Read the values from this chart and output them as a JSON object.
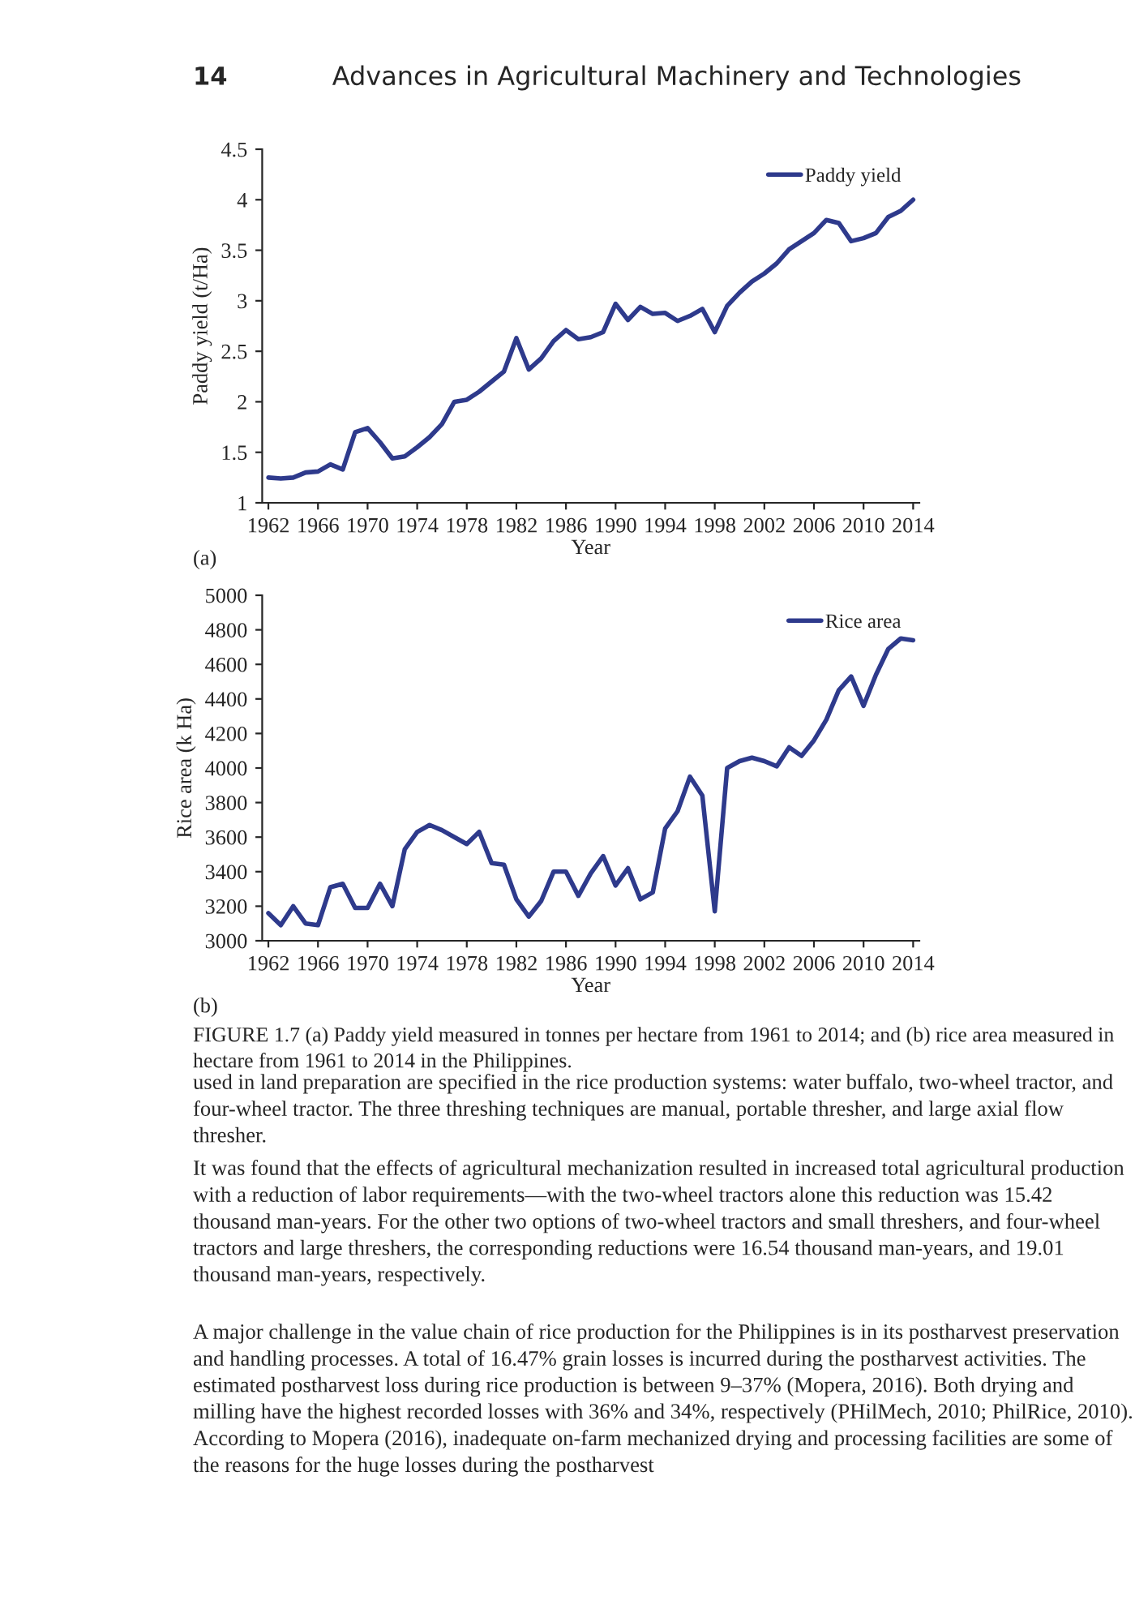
{
  "chart_data": [
    {
      "type": "line",
      "xlabel": "Year",
      "ylabel": "Paddy yield (t/Ha)",
      "x": [
        1962,
        1963,
        1964,
        1965,
        1966,
        1967,
        1968,
        1969,
        1970,
        1971,
        1972,
        1973,
        1974,
        1975,
        1976,
        1977,
        1978,
        1979,
        1980,
        1981,
        1982,
        1983,
        1984,
        1985,
        1986,
        1987,
        1988,
        1989,
        1990,
        1991,
        1992,
        1993,
        1994,
        1995,
        1996,
        1997,
        1998,
        1999,
        2000,
        2001,
        2002,
        2003,
        2004,
        2005,
        2006,
        2007,
        2008,
        2009,
        2010,
        2011,
        2012,
        2013,
        2014
      ],
      "series": [
        {
          "name": "Paddy yield",
          "color": "#2e3a8c",
          "values": [
            1.25,
            1.24,
            1.25,
            1.3,
            1.31,
            1.38,
            1.33,
            1.7,
            1.74,
            1.6,
            1.44,
            1.46,
            1.55,
            1.65,
            1.78,
            2.0,
            2.02,
            2.1,
            2.2,
            2.3,
            2.63,
            2.32,
            2.43,
            2.6,
            2.71,
            2.62,
            2.64,
            2.69,
            2.97,
            2.81,
            2.94,
            2.87,
            2.88,
            2.8,
            2.85,
            2.92,
            2.69,
            2.95,
            3.08,
            3.19,
            3.27,
            3.37,
            3.51,
            3.59,
            3.67,
            3.8,
            3.77,
            3.59,
            3.62,
            3.67,
            3.83,
            3.89,
            4.0
          ]
        }
      ],
      "xlim": [
        1961.5,
        2014.5
      ],
      "xticks": [
        1962,
        1966,
        1970,
        1974,
        1978,
        1982,
        1986,
        1990,
        1994,
        1998,
        2002,
        2006,
        2010,
        2014
      ],
      "ylim": [
        1,
        4.5
      ],
      "yticks": [
        1,
        1.5,
        2,
        2.5,
        3,
        3.5,
        4,
        4.5
      ],
      "grid": false,
      "legend": "top right",
      "marker": "none",
      "line_style": "solid",
      "annotations": [
        "14",
        "Advances in Agricultural Machinery and Technologies",
        "(a)"
      ]
    },
    {
      "type": "line",
      "xlabel": "Year",
      "ylabel": "Rice area (k Ha)",
      "x": [
        1962,
        1963,
        1964,
        1965,
        1966,
        1967,
        1968,
        1969,
        1970,
        1971,
        1972,
        1973,
        1974,
        1975,
        1976,
        1977,
        1978,
        1979,
        1980,
        1981,
        1982,
        1983,
        1984,
        1985,
        1986,
        1987,
        1988,
        1989,
        1990,
        1991,
        1992,
        1993,
        1994,
        1995,
        1996,
        1997,
        1998,
        1999,
        2000,
        2001,
        2002,
        2003,
        2004,
        2005,
        2006,
        2007,
        2008,
        2009,
        2010,
        2011,
        2012,
        2013,
        2014
      ],
      "series": [
        {
          "name": "Rice area",
          "color": "#2e3a8c",
          "values": [
            3160,
            3090,
            3200,
            3100,
            3090,
            3310,
            3330,
            3190,
            3190,
            3330,
            3200,
            3530,
            3630,
            3670,
            3640,
            3600,
            3560,
            3630,
            3450,
            3440,
            3240,
            3140,
            3230,
            3400,
            3400,
            3260,
            3390,
            3490,
            3320,
            3420,
            3240,
            3280,
            3650,
            3750,
            3950,
            3840,
            3170,
            4000,
            4040,
            4060,
            4040,
            4010,
            4120,
            4070,
            4160,
            4280,
            4450,
            4530,
            4360,
            4540,
            4690,
            4750,
            4740
          ]
        }
      ],
      "xlim": [
        1961.5,
        2014.5
      ],
      "xticks": [
        1962,
        1966,
        1970,
        1974,
        1978,
        1982,
        1986,
        1990,
        1994,
        1998,
        2002,
        2006,
        2010,
        2014
      ],
      "ylim": [
        3000,
        5000
      ],
      "yticks": [
        3000,
        3200,
        3400,
        3600,
        3800,
        4000,
        4200,
        4400,
        4600,
        4800,
        5000
      ],
      "grid": false,
      "legend": "top right",
      "marker": "none",
      "line_style": "solid",
      "annotations": [
        "(b)",
        "FIGURE 1.7 (a) Paddy yield measured in tonnes per hectare from 1961 to 2014; and (b) rice area measured in hectare from 1961 to 2014 in the Philippines.",
        "used in land preparation are specified in the rice production systems: water buffalo, two-wheel tractor, and four-wheel tractor. The three threshing techniques are manual, portable thresher, and large axial flow thresher.",
        "It was found that the effects of agricultural mechanization resulted in increased total agricultural production with a reduction of labor requirements—with the two-wheel tractors alone this reduction was 15.42 thousand man-years. For the other two options of two-wheel tractors and small threshers, and four-wheel tractors and large threshers, the corresponding reductions were 16.54 thousand man-years, and 19.01 thousand man-years, respectively.",
        "A major challenge in the value chain of rice production for the Philippines is in its postharvest preservation and handling processes. A total of 16.47% grain losses is incurred during the postharvest activities. The estimated postharvest loss during rice production is between 9–37% (Mopera, 2016). Both drying and milling have the highest recorded losses with 36% and 34%, respectively (PHilMech, 2010; PhilRice, 2010). According to Mopera (2016), inadequate on-farm mechanized drying and processing facilities are some of the reasons for the huge losses during the postharvest"
      ]
    }
  ]
}
